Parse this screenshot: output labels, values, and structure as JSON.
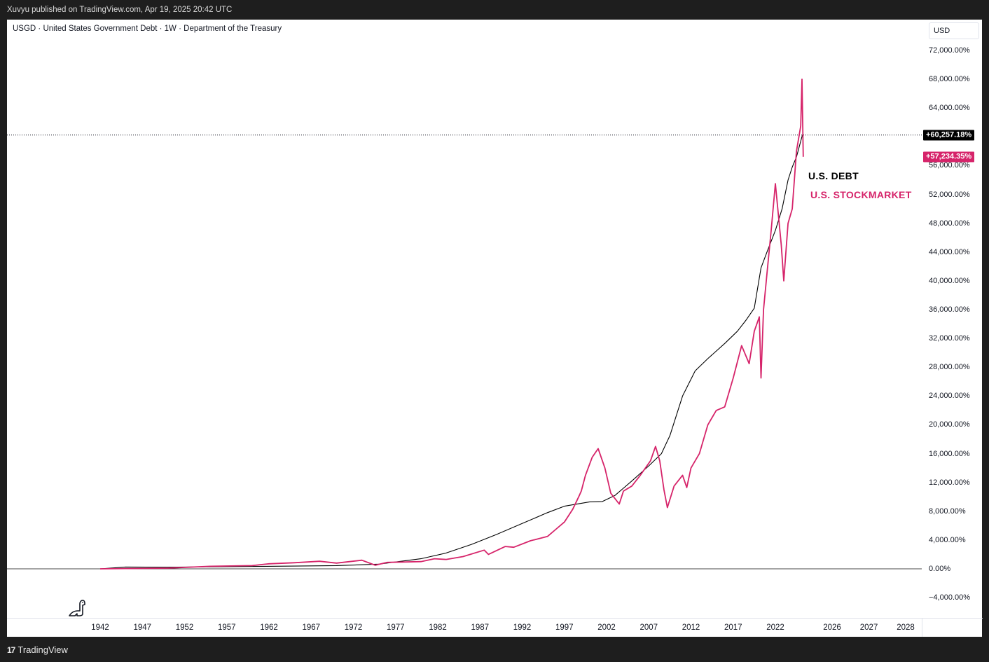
{
  "header": {
    "published": "Xuvyu published on TradingView.com, Apr 19, 2025 20:42 UTC"
  },
  "legend": {
    "text": "USGD · United States Government Debt · 1W · Department of the Treasury"
  },
  "currency": "USD",
  "brand": {
    "logo": "17",
    "name": "TradingView"
  },
  "colors": {
    "debt": "#000000",
    "stock": "#d6246a",
    "background": "#ffffff"
  },
  "icons": {
    "dino": "dinosaur-icon",
    "logo": "tradingview-logo-icon"
  },
  "chart_data": {
    "type": "line",
    "y_scale": "percent",
    "ylim": [
      -6000,
      74000
    ],
    "xlim": [
      1936,
      2029.5
    ],
    "y_ticks": [
      72000,
      68000,
      64000,
      56000,
      52000,
      48000,
      44000,
      40000,
      36000,
      32000,
      28000,
      24000,
      20000,
      16000,
      12000,
      8000,
      4000,
      0,
      -4000
    ],
    "y_tick_labels": [
      "72,000.00%",
      "68,000.00%",
      "64,000.00%",
      "56,000.00%",
      "52,000.00%",
      "48,000.00%",
      "44,000.00%",
      "40,000.00%",
      "36,000.00%",
      "32,000.00%",
      "28,000.00%",
      "24,000.00%",
      "20,000.00%",
      "16,000.00%",
      "12,000.00%",
      "8,000.00%",
      "4,000.00%",
      "0.00%",
      "−4,000.00%"
    ],
    "x_ticks": [
      1942,
      1947,
      1952,
      1957,
      1962,
      1967,
      1972,
      1977,
      1982,
      1987,
      1992,
      1997,
      2002,
      2007,
      2012,
      2017,
      2022,
      2026,
      2027,
      2028
    ],
    "x_tick_labels": [
      "1942",
      "1947",
      "1952",
      "1957",
      "1962",
      "1967",
      "1972",
      "1977",
      "1982",
      "1987",
      "1992",
      "1997",
      "2002",
      "2007",
      "2012",
      "2017",
      "2022",
      "2026",
      "2027",
      "2028"
    ],
    "zero_line": 0,
    "last_value_line": 60257.18,
    "series": [
      {
        "name": "U.S. DEBT",
        "last_label": "+60,257.18%",
        "last_value": 60257.18,
        "x": [
          1942,
          1945,
          1950,
          1955,
          1960,
          1965,
          1970,
          1975,
          1980,
          1983,
          1986,
          1989,
          1992,
          1995,
          1997,
          2000,
          2001.5,
          2003,
          2005,
          2007,
          2008.5,
          2009.5,
          2011,
          2012.5,
          2014,
          2016,
          2017.5,
          2018.5,
          2019.5,
          2020.3,
          2021,
          2022,
          2022.8,
          2023.5,
          2024,
          2024.5,
          2025.2
        ],
        "values": [
          0,
          250,
          220,
          280,
          330,
          380,
          450,
          650,
          1400,
          2200,
          3400,
          4800,
          6300,
          7800,
          8700,
          9300,
          9350,
          10200,
          12200,
          14300,
          16000,
          18500,
          24000,
          27500,
          29200,
          31300,
          33000,
          34500,
          36200,
          41800,
          44000,
          47000,
          50000,
          54000,
          55800,
          57200,
          60257
        ]
      },
      {
        "name": "U.S. STOCKMARKET",
        "last_label": "+57,234.35%",
        "last_value": 57234.35,
        "x": [
          1942,
          1950,
          1955,
          1960,
          1962,
          1965,
          1968,
          1970,
          1973,
          1974.6,
          1976,
          1980,
          1981.6,
          1983,
          1985,
          1987.5,
          1988,
          1990,
          1991,
          1993,
          1995,
          1996,
          1997,
          1998,
          1998.7,
          1999,
          1999.5,
          2000.3,
          2001,
          2001.8,
          2002.5,
          2003.5,
          2004,
          2005,
          2006,
          2007.2,
          2007.8,
          2008.3,
          2008.8,
          2009.2,
          2010,
          2011,
          2011.5,
          2012,
          2013,
          2014,
          2015,
          2016,
          2017,
          2018,
          2018.9,
          2019.5,
          2020.1,
          2020.3,
          2020.6,
          2021,
          2021.5,
          2022,
          2022.7,
          2023,
          2023.5,
          2024,
          2024.5,
          2025,
          2025.15,
          2025.3
        ],
        "values": [
          0,
          100,
          350,
          450,
          700,
          850,
          1050,
          800,
          1200,
          500,
          900,
          1000,
          1400,
          1300,
          1700,
          2600,
          2000,
          3100,
          3000,
          3900,
          4500,
          5500,
          6500,
          8300,
          10000,
          10800,
          13000,
          15500,
          16700,
          14000,
          10500,
          9000,
          10800,
          11500,
          13000,
          15000,
          17000,
          15000,
          11000,
          8500,
          11500,
          13000,
          11300,
          14000,
          16000,
          20000,
          22000,
          22500,
          26500,
          31000,
          28500,
          33000,
          35000,
          26500,
          36000,
          41000,
          47000,
          53500,
          45000,
          40000,
          48000,
          50000,
          58000,
          61500,
          68000,
          57234
        ]
      }
    ],
    "annotations": [
      {
        "text": "U.S. DEBT",
        "color": "#000000"
      },
      {
        "text": "U.S. STOCKMARKET",
        "color": "#d6246a"
      }
    ]
  }
}
